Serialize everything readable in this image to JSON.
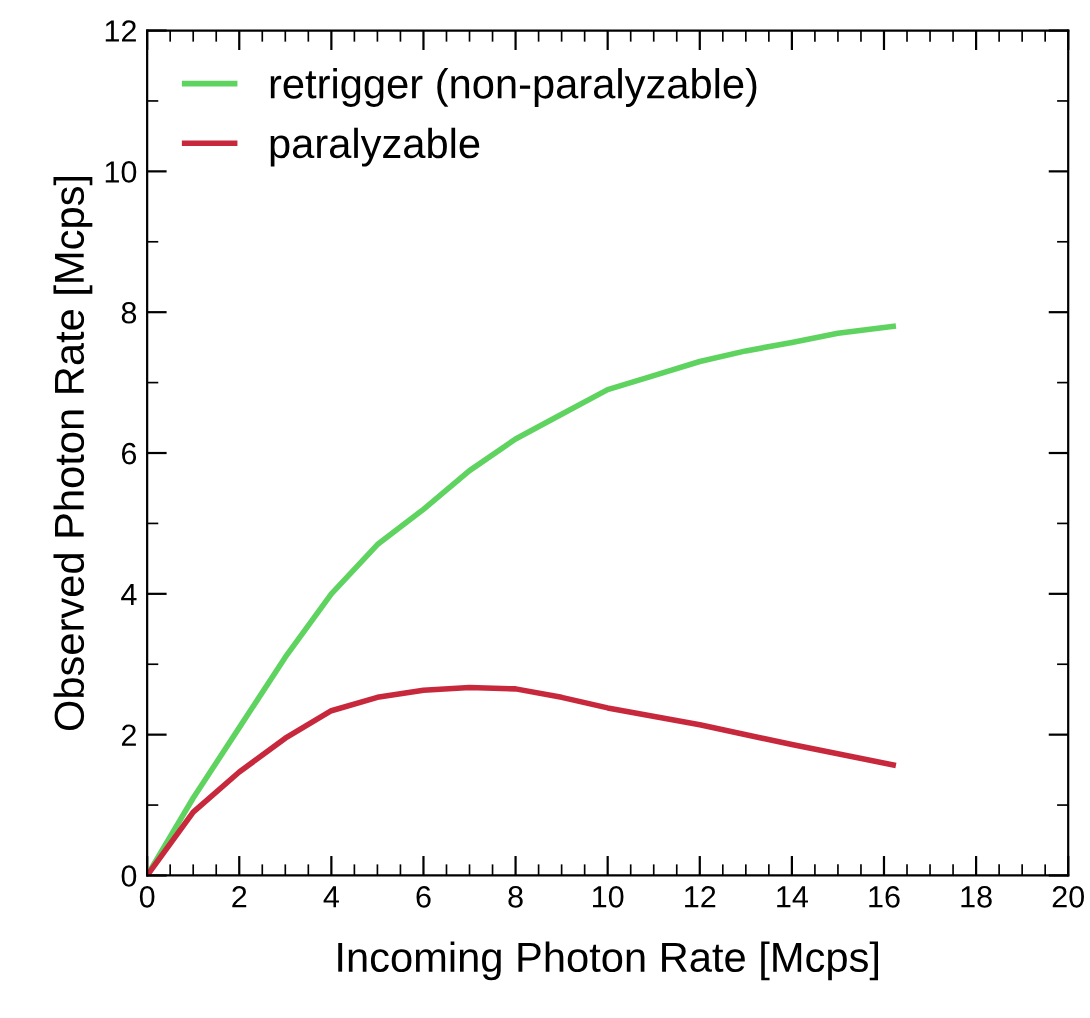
{
  "chart_data": {
    "type": "line",
    "xlabel": "Incoming Photon Rate [Mcps]",
    "ylabel": "Observed Photon Rate [Mcps]",
    "xlim": [
      0,
      20
    ],
    "ylim": [
      0,
      12
    ],
    "xticks": [
      0,
      2,
      4,
      6,
      8,
      10,
      12,
      14,
      16,
      18,
      20
    ],
    "yticks": [
      0,
      2,
      4,
      6,
      8,
      10,
      12
    ],
    "grid": false,
    "legend": "top left",
    "marker": "none",
    "line_style": "solid",
    "series": [
      {
        "name": "retrigger (non-paralyzable)",
        "color": "#5fd35f",
        "x": [
          0,
          1,
          2,
          3,
          4,
          5,
          6,
          7,
          8,
          9,
          10,
          11,
          12,
          13,
          14,
          15,
          16.2
        ],
        "values": [
          0,
          1.1,
          2.1,
          3.1,
          4.0,
          4.7,
          5.2,
          5.75,
          6.2,
          6.55,
          6.9,
          7.1,
          7.3,
          7.45,
          7.57,
          7.7,
          7.8
        ]
      },
      {
        "name": "paralyzable",
        "color": "#c8283c",
        "x": [
          0,
          1,
          2,
          3,
          4,
          5,
          6,
          7,
          8,
          9,
          10,
          12,
          14,
          16.2
        ],
        "values": [
          0,
          0.9,
          1.47,
          1.95,
          2.34,
          2.53,
          2.63,
          2.67,
          2.65,
          2.53,
          2.38,
          2.14,
          1.86,
          1.57
        ]
      }
    ]
  }
}
